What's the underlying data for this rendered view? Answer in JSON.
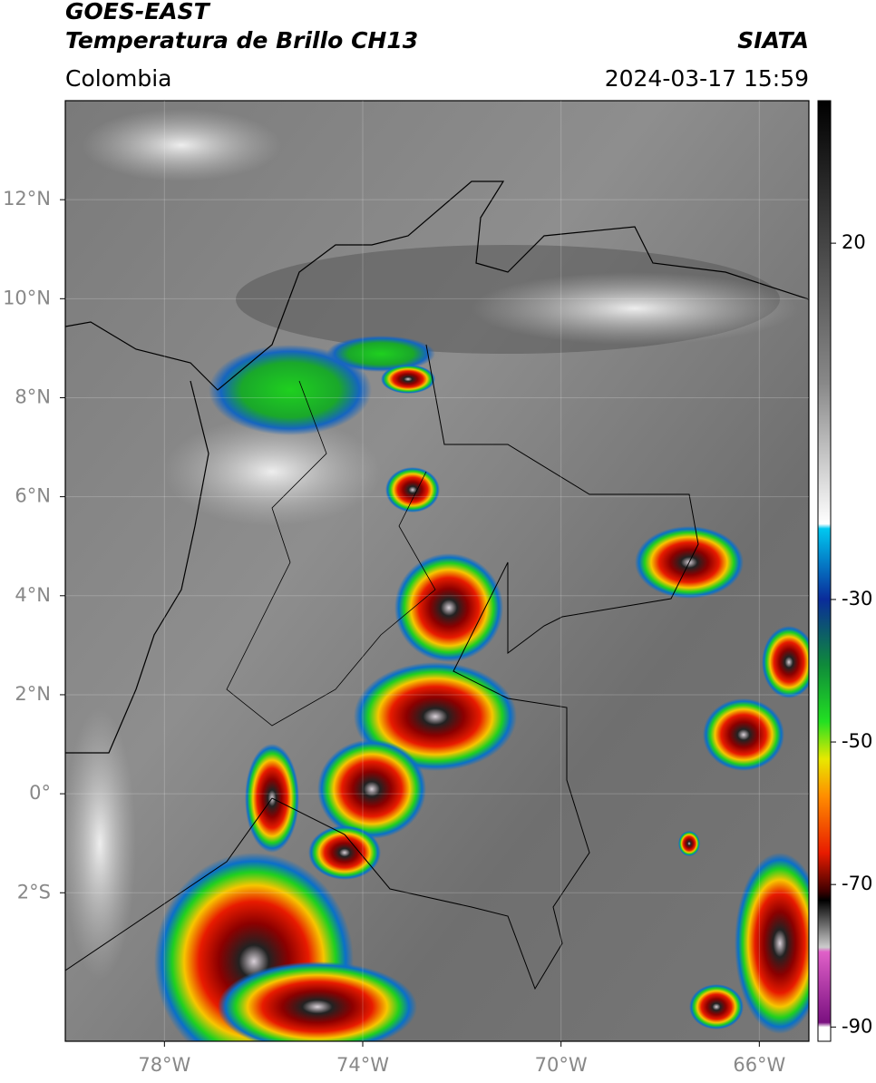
{
  "header": {
    "title": "GOES-EAST",
    "subtitle": "Temperatura de Brillo CH13",
    "region": "Colombia",
    "source": "SIATA",
    "datetime": "2024-03-17 15:59"
  },
  "map": {
    "xlim": [
      -80,
      -65
    ],
    "ylim": [
      -5,
      14
    ],
    "xticks": [
      {
        "value": -78,
        "label": "78°W"
      },
      {
        "value": -74,
        "label": "74°W"
      },
      {
        "value": -70,
        "label": "70°W"
      },
      {
        "value": -66,
        "label": "66°W"
      }
    ],
    "yticks": [
      {
        "value": 12,
        "label": "12°N"
      },
      {
        "value": 10,
        "label": "10°N"
      },
      {
        "value": 8,
        "label": "8°N"
      },
      {
        "value": 6,
        "label": "6°N"
      },
      {
        "value": 4,
        "label": "4°N"
      },
      {
        "value": 2,
        "label": "2°N"
      },
      {
        "value": 0,
        "label": "0°"
      },
      {
        "value": -2,
        "label": "2°S"
      }
    ]
  },
  "colorbar": {
    "lim": [
      -92,
      40
    ],
    "ticks": [
      20,
      -30,
      -50,
      -70,
      -90
    ]
  }
}
